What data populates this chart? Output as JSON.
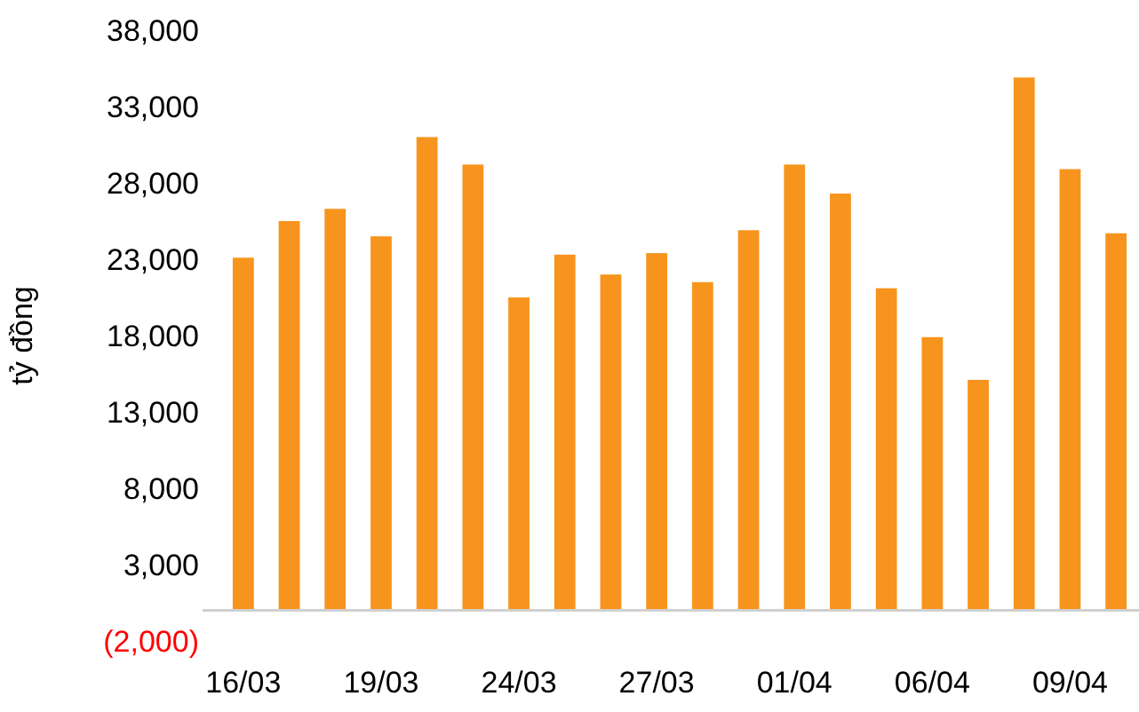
{
  "chart_data": {
    "type": "bar",
    "ylabel": "tỷ đồng",
    "categories": [
      "16/03",
      null,
      null,
      "19/03",
      null,
      null,
      "24/03",
      null,
      null,
      "27/03",
      null,
      null,
      "01/04",
      null,
      null,
      "06/04",
      null,
      null,
      "09/04",
      null
    ],
    "values": [
      23100,
      25500,
      26300,
      24500,
      31000,
      29200,
      20500,
      23300,
      22000,
      23400,
      21500,
      24900,
      29200,
      27300,
      21100,
      17900,
      15100,
      34900,
      28900,
      24700
    ],
    "color": "#f7941d",
    "ylim": [
      -2000,
      38000
    ],
    "yticks": [
      {
        "value": -2000,
        "label": "(2,000)"
      },
      {
        "value": 3000,
        "label": "3,000"
      },
      {
        "value": 8000,
        "label": "8,000"
      },
      {
        "value": 13000,
        "label": "13,000"
      },
      {
        "value": 18000,
        "label": "18,000"
      },
      {
        "value": 23000,
        "label": "23,000"
      },
      {
        "value": 28000,
        "label": "28,000"
      },
      {
        "value": 33000,
        "label": "33,000"
      },
      {
        "value": 38000,
        "label": "38,000"
      }
    ],
    "grid": false
  }
}
